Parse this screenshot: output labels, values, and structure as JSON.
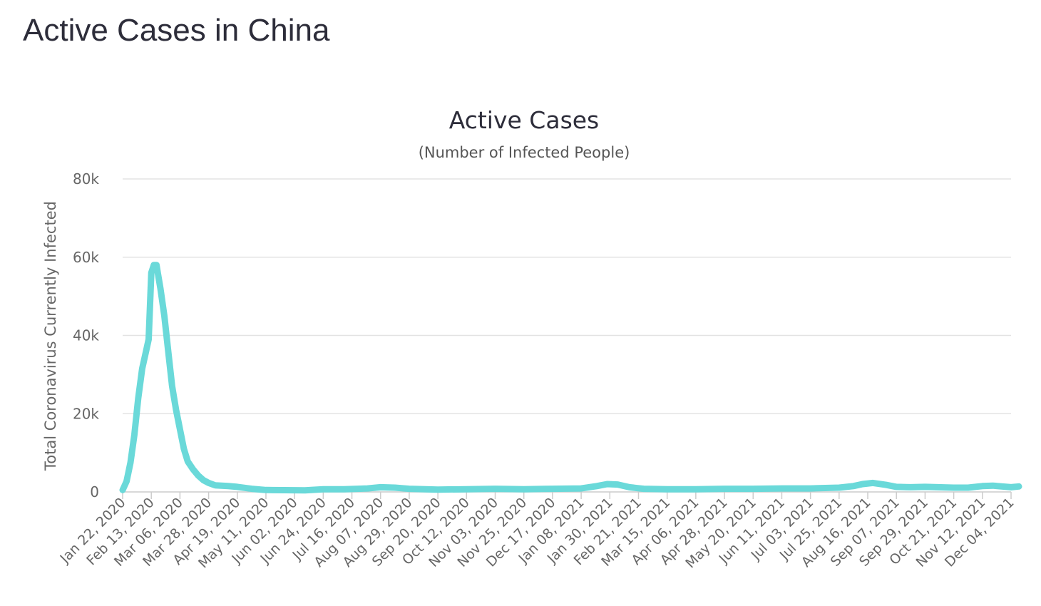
{
  "page": {
    "title": "Active Cases in China"
  },
  "chart_data": {
    "type": "line",
    "title": "Active Cases",
    "subtitle": "(Number of Infected People)",
    "xlabel": "",
    "ylabel": "Total Coronavirus Currently Infected",
    "ylim": [
      0,
      80000
    ],
    "y_ticks": [
      0,
      20000,
      40000,
      60000,
      80000
    ],
    "y_tick_labels": [
      "0",
      "20k",
      "40k",
      "60k",
      "80k"
    ],
    "x_tick_labels": [
      "Jan 22, 2020",
      "Feb 13, 2020",
      "Mar 06, 2020",
      "Mar 28, 2020",
      "Apr 19, 2020",
      "May 11, 2020",
      "Jun 02, 2020",
      "Jun 24, 2020",
      "Jul 16, 2020",
      "Aug 07, 2020",
      "Aug 29, 2020",
      "Sep 20, 2020",
      "Oct 12, 2020",
      "Nov 03, 2020",
      "Nov 25, 2020",
      "Dec 17, 2020",
      "Jan 08, 2021",
      "Jan 30, 2021",
      "Feb 21, 2021",
      "Mar 15, 2021",
      "Apr 06, 2021",
      "Apr 28, 2021",
      "May 20, 2021",
      "Jun 11, 2021",
      "Jul 03, 2021",
      "Jul 25, 2021",
      "Aug 16, 2021",
      "Sep 07, 2021",
      "Sep 29, 2021",
      "Oct 21, 2021",
      "Nov 12, 2021",
      "Dec 04, 2021"
    ],
    "grid": true,
    "legend": "none",
    "color": "#6ad9d9",
    "x": [
      "Jan 22, 2020",
      "Jan 25, 2020",
      "Jan 28, 2020",
      "Jan 31, 2020",
      "Feb 03, 2020",
      "Feb 06, 2020",
      "Feb 09, 2020",
      "Feb 11, 2020",
      "Feb 13, 2020",
      "Feb 15, 2020",
      "Feb 17, 2020",
      "Feb 18, 2020",
      "Feb 20, 2020",
      "Feb 23, 2020",
      "Feb 26, 2020",
      "Feb 29, 2020",
      "Mar 03, 2020",
      "Mar 06, 2020",
      "Mar 09, 2020",
      "Mar 12, 2020",
      "Mar 16, 2020",
      "Mar 20, 2020",
      "Mar 24, 2020",
      "Mar 28, 2020",
      "Apr 02, 2020",
      "Apr 07, 2020",
      "Apr 12, 2020",
      "Apr 19, 2020",
      "Apr 30, 2020",
      "May 11, 2020",
      "May 25, 2020",
      "Jun 10, 2020",
      "Jun 24, 2020",
      "Jul 10, 2020",
      "Jul 28, 2020",
      "Aug 07, 2020",
      "Aug 18, 2020",
      "Aug 29, 2020",
      "Sep 20, 2020",
      "Oct 12, 2020",
      "Nov 03, 2020",
      "Nov 25, 2020",
      "Dec 17, 2020",
      "Jan 08, 2021",
      "Jan 20, 2021",
      "Jan 28, 2021",
      "Feb 05, 2021",
      "Feb 14, 2021",
      "Feb 25, 2021",
      "Mar 15, 2021",
      "Apr 06, 2021",
      "Apr 28, 2021",
      "May 20, 2021",
      "Jun 11, 2021",
      "Jul 03, 2021",
      "Jul 25, 2021",
      "Aug 05, 2021",
      "Aug 12, 2021",
      "Aug 20, 2021",
      "Aug 30, 2021",
      "Sep 07, 2021",
      "Sep 18, 2021",
      "Sep 29, 2021",
      "Oct 21, 2021",
      "Nov 01, 2021",
      "Nov 12, 2021",
      "Nov 20, 2021",
      "Dec 04, 2021",
      "Dec 10, 2021"
    ],
    "series": [
      {
        "values": [
          500,
          2700,
          7500,
          14500,
          24000,
          31500,
          36000,
          39000,
          56000,
          58000,
          58000,
          56000,
          52000,
          45000,
          36000,
          27000,
          21000,
          16000,
          11000,
          7800,
          5800,
          4200,
          3000,
          2300,
          1700,
          1600,
          1500,
          1300,
          800,
          500,
          450,
          400,
          700,
          700,
          900,
          1200,
          1100,
          800,
          600,
          700,
          800,
          700,
          800,
          900,
          1500,
          2000,
          1900,
          1200,
          800,
          700,
          700,
          800,
          800,
          900,
          900,
          1100,
          1500,
          2000,
          2300,
          1800,
          1300,
          1200,
          1300,
          1100,
          1100,
          1500,
          1600,
          1200,
          1400
        ]
      }
    ]
  }
}
